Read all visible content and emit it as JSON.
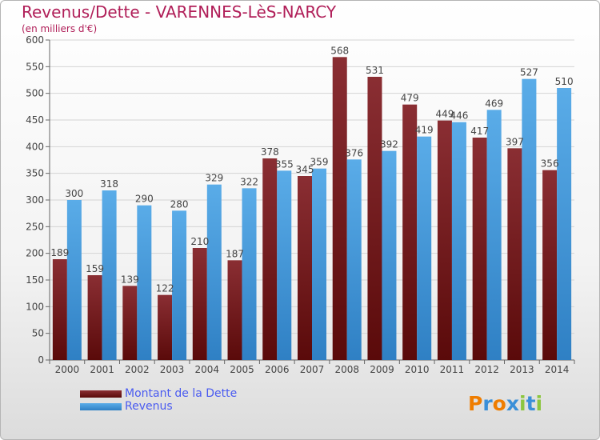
{
  "header": {
    "title": "Revenus/Dette - VARENNES-LèS-NARCY",
    "subtitle": "(en milliers d'€)"
  },
  "legend": {
    "debt_label": "Montant de la Dette",
    "revenue_label": "Revenus"
  },
  "logo": {
    "letters": [
      "P",
      "r",
      "o",
      "x",
      "i",
      "t",
      "i"
    ],
    "colors": [
      "#ef7d00",
      "#3a8fd8",
      "#ef7d00",
      "#3a8fd8",
      "#8cc63f",
      "#3a8fd8",
      "#8cc63f"
    ]
  },
  "colors": {
    "debt_top": "#8a2e33",
    "debt_bottom": "#5a0a0a",
    "revenue_top": "#5aace8",
    "revenue_bottom": "#2f80c4",
    "grid": "#d4d4d4",
    "text": "#444444"
  },
  "chart_data": {
    "type": "bar",
    "title": "Revenus/Dette - VARENNES-LèS-NARCY",
    "subtitle": "(en milliers d'€)",
    "categories": [
      "2000",
      "2001",
      "2002",
      "2003",
      "2004",
      "2005",
      "2006",
      "2007",
      "2008",
      "2009",
      "2010",
      "2011",
      "2012",
      "2013",
      "2014"
    ],
    "series": [
      {
        "name": "Montant de la Dette",
        "values": [
          189,
          159,
          139,
          122,
          210,
          187,
          378,
          345,
          568,
          531,
          479,
          449,
          417,
          397,
          356
        ]
      },
      {
        "name": "Revenus",
        "values": [
          300,
          318,
          290,
          280,
          329,
          322,
          355,
          359,
          376,
          392,
          419,
          446,
          469,
          527,
          510
        ]
      }
    ],
    "yticks": [
      0,
      50,
      100,
      150,
      200,
      250,
      300,
      350,
      400,
      450,
      500,
      550,
      600
    ],
    "ylim": [
      0,
      600
    ],
    "grid": true,
    "legend_position": "bottom-left"
  }
}
